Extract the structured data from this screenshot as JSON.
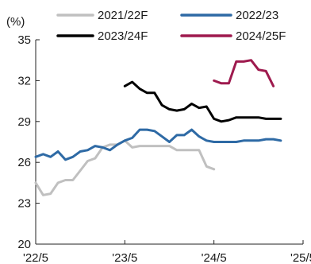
{
  "chart_data": {
    "type": "line",
    "unit_label": "(%)",
    "ylim": [
      20,
      35
    ],
    "y_ticks": [
      20,
      23,
      26,
      29,
      32,
      35
    ],
    "xlim": [
      "2022-05",
      "2025-05"
    ],
    "x_ticks": [
      {
        "date": "2022-05",
        "label": "'22/5"
      },
      {
        "date": "2023-05",
        "label": "'23/5"
      },
      {
        "date": "2024-05",
        "label": "'24/5"
      },
      {
        "date": "2025-05",
        "label": "'25/5"
      }
    ],
    "grid": false,
    "legend": "top",
    "series": [
      {
        "name": "2021/22F",
        "color": "#c0c0c0",
        "points": [
          [
            "2022-05",
            24.5
          ],
          [
            "2022-06",
            23.6
          ],
          [
            "2022-07",
            23.7
          ],
          [
            "2022-08",
            24.5
          ],
          [
            "2022-09",
            24.7
          ],
          [
            "2022-10",
            24.7
          ],
          [
            "2022-11",
            25.4
          ],
          [
            "2022-12",
            26.1
          ],
          [
            "2023-01",
            26.3
          ],
          [
            "2023-02",
            27.1
          ],
          [
            "2023-03",
            27.3
          ],
          [
            "2023-04",
            27.3
          ],
          [
            "2023-05",
            27.6
          ],
          [
            "2023-06",
            27.1
          ],
          [
            "2023-07",
            27.2
          ],
          [
            "2023-08",
            27.2
          ],
          [
            "2023-09",
            27.2
          ],
          [
            "2023-10",
            27.2
          ],
          [
            "2023-11",
            27.2
          ],
          [
            "2023-12",
            26.9
          ],
          [
            "2024-01",
            26.9
          ],
          [
            "2024-02",
            26.9
          ],
          [
            "2024-03",
            26.9
          ],
          [
            "2024-04",
            25.7
          ],
          [
            "2024-05",
            25.5
          ]
        ]
      },
      {
        "name": "2022/23",
        "color": "#2e6aa5",
        "points": [
          [
            "2022-05",
            26.4
          ],
          [
            "2022-06",
            26.6
          ],
          [
            "2022-07",
            26.4
          ],
          [
            "2022-08",
            26.8
          ],
          [
            "2022-09",
            26.2
          ],
          [
            "2022-10",
            26.4
          ],
          [
            "2022-11",
            26.8
          ],
          [
            "2022-12",
            26.9
          ],
          [
            "2023-01",
            27.2
          ],
          [
            "2023-02",
            27.1
          ],
          [
            "2023-03",
            26.9
          ],
          [
            "2023-04",
            27.3
          ],
          [
            "2023-05",
            27.6
          ],
          [
            "2023-06",
            27.8
          ],
          [
            "2023-07",
            28.4
          ],
          [
            "2023-08",
            28.4
          ],
          [
            "2023-09",
            28.3
          ],
          [
            "2023-10",
            27.9
          ],
          [
            "2023-11",
            27.5
          ],
          [
            "2023-12",
            28.0
          ],
          [
            "2024-01",
            28.0
          ],
          [
            "2024-02",
            28.4
          ],
          [
            "2024-03",
            27.9
          ],
          [
            "2024-04",
            27.6
          ],
          [
            "2024-05",
            27.5
          ],
          [
            "2024-06",
            27.5
          ],
          [
            "2024-07",
            27.5
          ],
          [
            "2024-08",
            27.5
          ],
          [
            "2024-09",
            27.6
          ],
          [
            "2024-10",
            27.6
          ],
          [
            "2024-11",
            27.6
          ],
          [
            "2024-12",
            27.7
          ],
          [
            "2025-01",
            27.7
          ],
          [
            "2025-02",
            27.6
          ]
        ]
      },
      {
        "name": "2023/24F",
        "color": "#000000",
        "points": [
          [
            "2023-05",
            31.6
          ],
          [
            "2023-06",
            31.9
          ],
          [
            "2023-07",
            31.4
          ],
          [
            "2023-08",
            31.1
          ],
          [
            "2023-09",
            31.1
          ],
          [
            "2023-10",
            30.2
          ],
          [
            "2023-11",
            29.9
          ],
          [
            "2023-12",
            29.8
          ],
          [
            "2024-01",
            29.9
          ],
          [
            "2024-02",
            30.3
          ],
          [
            "2024-03",
            30.0
          ],
          [
            "2024-04",
            30.1
          ],
          [
            "2024-05",
            29.2
          ],
          [
            "2024-06",
            29.0
          ],
          [
            "2024-07",
            29.1
          ],
          [
            "2024-08",
            29.3
          ],
          [
            "2024-09",
            29.3
          ],
          [
            "2024-10",
            29.3
          ],
          [
            "2024-11",
            29.3
          ],
          [
            "2024-12",
            29.2
          ],
          [
            "2025-01",
            29.2
          ],
          [
            "2025-02",
            29.2
          ]
        ]
      },
      {
        "name": "2024/25F",
        "color": "#9e1a4e",
        "points": [
          [
            "2024-05",
            32.0
          ],
          [
            "2024-06",
            31.8
          ],
          [
            "2024-07",
            31.8
          ],
          [
            "2024-08",
            33.4
          ],
          [
            "2024-09",
            33.4
          ],
          [
            "2024-10",
            33.5
          ],
          [
            "2024-11",
            32.8
          ],
          [
            "2024-12",
            32.7
          ],
          [
            "2025-01",
            31.6
          ]
        ]
      }
    ]
  }
}
